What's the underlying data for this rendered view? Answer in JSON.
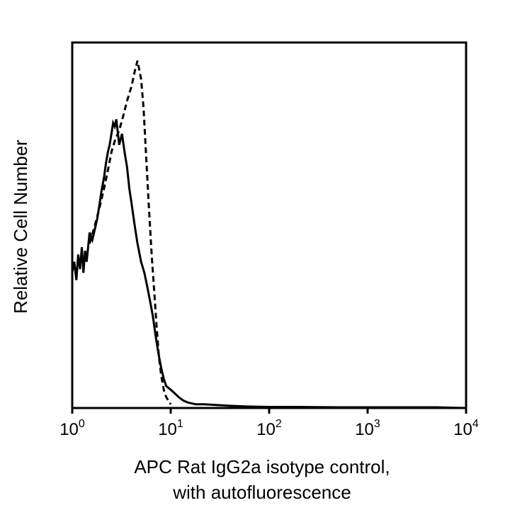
{
  "chart_data": {
    "type": "line",
    "xlabel_lines": [
      "APC Rat IgG2a isotype control,",
      "with autofluorescence"
    ],
    "ylabel": "Relative Cell Number",
    "x_scale": "log",
    "xlim": [
      1,
      10000
    ],
    "ylim": [
      0,
      100
    ],
    "x_ticks": [
      {
        "base": "10",
        "exp": "0"
      },
      {
        "base": "10",
        "exp": "1"
      },
      {
        "base": "10",
        "exp": "2"
      },
      {
        "base": "10",
        "exp": "3"
      },
      {
        "base": "10",
        "exp": "4"
      }
    ],
    "x_tick_values": [
      1,
      10,
      100,
      1000,
      10000
    ],
    "grid": false,
    "series": [
      {
        "style": "solid",
        "color": "#000000",
        "x": [
          1.0,
          1.05,
          1.1,
          1.15,
          1.2,
          1.25,
          1.3,
          1.35,
          1.4,
          1.5,
          1.6,
          1.7,
          1.8,
          1.9,
          2.0,
          2.1,
          2.2,
          2.3,
          2.4,
          2.5,
          2.6,
          2.7,
          2.8,
          3.0,
          3.2,
          3.4,
          3.6,
          3.8,
          4.0,
          4.3,
          4.6,
          5.0,
          5.4,
          5.8,
          6.2,
          6.6,
          7.0,
          7.5,
          8.0,
          8.5,
          9.0,
          10.0,
          11.0,
          12.0,
          13.5,
          15,
          18,
          22,
          30,
          40,
          60,
          100,
          200,
          500,
          1000,
          2000,
          5000,
          10000
        ],
        "y": [
          37,
          40,
          35,
          42,
          38,
          44,
          37,
          43,
          40,
          48,
          46,
          49,
          52,
          56,
          60,
          63,
          67,
          70,
          72,
          75,
          78,
          77,
          79,
          72,
          75,
          70,
          66,
          60,
          56,
          50,
          45,
          40,
          37,
          33,
          29,
          25,
          20,
          15,
          11,
          8,
          6,
          5,
          4,
          3,
          2,
          1.5,
          1,
          1,
          0.8,
          0.6,
          0.4,
          0.3,
          0.3,
          0.2,
          0.2,
          0.2,
          0.2,
          0
        ]
      },
      {
        "style": "dashed",
        "color": "#000000",
        "x": [
          1.5,
          1.7,
          1.9,
          2.1,
          2.3,
          2.5,
          2.7,
          3.0,
          3.3,
          3.6,
          4.0,
          4.3,
          4.6,
          5.0,
          5.3,
          5.6,
          6.0,
          6.4,
          6.8,
          7.2,
          7.6,
          8.0,
          8.5,
          9.0,
          10.0
        ],
        "y": [
          45,
          50,
          55,
          60,
          65,
          70,
          73,
          76,
          80,
          84,
          88,
          92,
          95,
          90,
          82,
          70,
          55,
          42,
          32,
          22,
          14,
          9,
          5,
          3,
          1
        ]
      }
    ]
  }
}
